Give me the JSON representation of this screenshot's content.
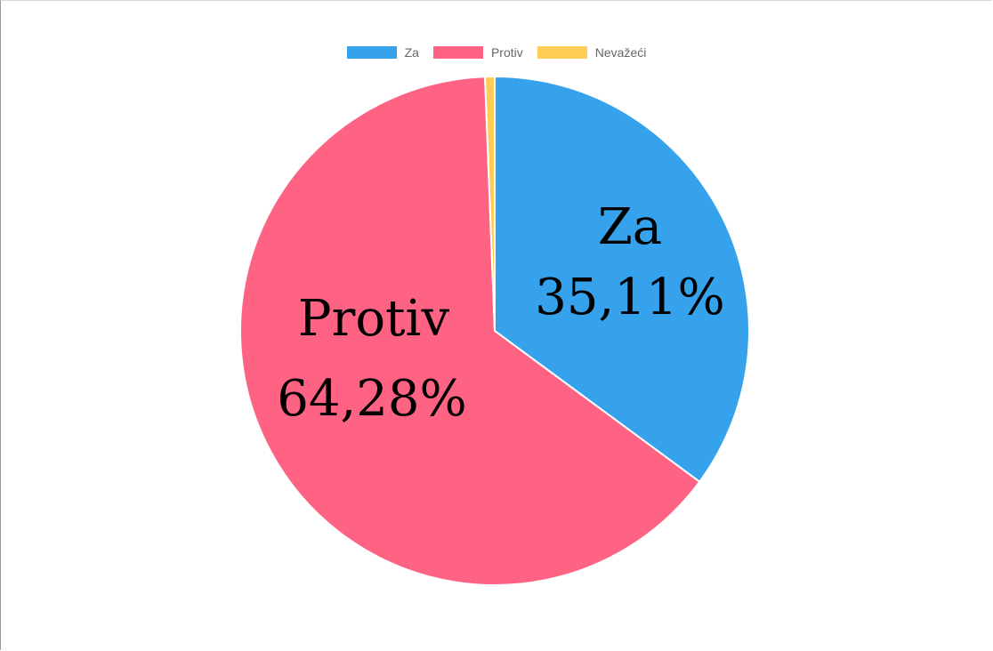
{
  "chart_data": {
    "type": "pie",
    "categories": [
      "Za",
      "Protiv",
      "Nevažeći"
    ],
    "values": [
      35.11,
      64.28,
      0.61
    ],
    "colors": [
      "#36a2eb",
      "#ff6384",
      "#ffcd56"
    ],
    "legend": "top",
    "labels": [
      {
        "name": "Za",
        "value": "35,11%"
      },
      {
        "name": "Protiv",
        "value": "64,28%"
      }
    ]
  }
}
